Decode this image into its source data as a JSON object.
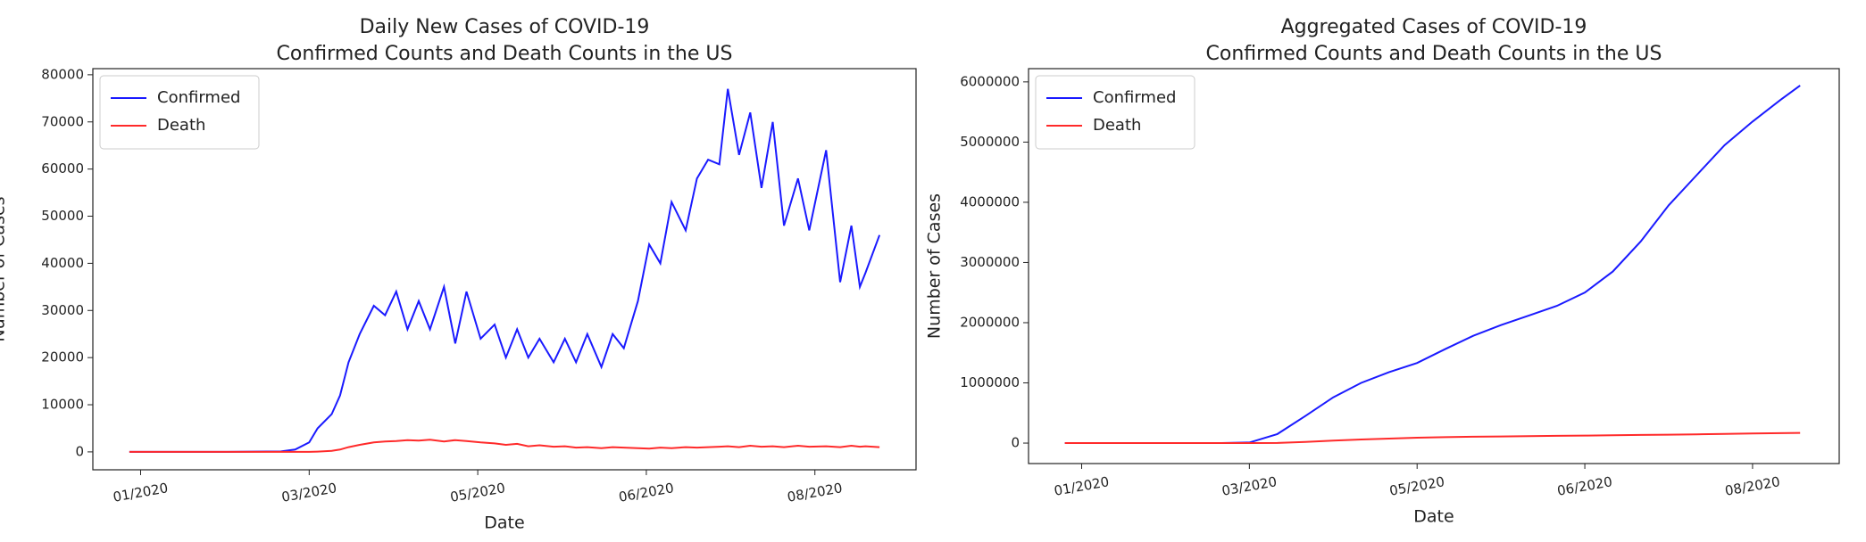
{
  "chart_data": [
    {
      "type": "line",
      "title": "Daily New Cases of COVID-19",
      "subtitle": "Confirmed Counts and Death Counts in the US",
      "x_label": "Date",
      "y_label": "Number of Cases",
      "x": [
        -4,
        10,
        30,
        50,
        55,
        60,
        63,
        68,
        71,
        74,
        78,
        83,
        87,
        91,
        95,
        99,
        103,
        108,
        112,
        116,
        121,
        126,
        130,
        134,
        138,
        142,
        147,
        151,
        155,
        159,
        164,
        168,
        172,
        177,
        181,
        185,
        189,
        194,
        198,
        202,
        206,
        209,
        213,
        217,
        221,
        225,
        229,
        234,
        238,
        244,
        249,
        253,
        256,
        258,
        263
      ],
      "series": [
        {
          "name": "Confirmed",
          "color": "#1a1aff",
          "values": [
            0,
            0,
            0,
            100,
            500,
            2000,
            5000,
            8000,
            12000,
            19000,
            25000,
            31000,
            29000,
            34000,
            26000,
            32000,
            26000,
            35000,
            23000,
            34000,
            24000,
            27000,
            20000,
            26000,
            20000,
            24000,
            19000,
            24000,
            19000,
            25000,
            18000,
            25000,
            22000,
            32000,
            44000,
            40000,
            53000,
            47000,
            58000,
            62000,
            61000,
            77000,
            63000,
            72000,
            56000,
            70000,
            48000,
            58000,
            47000,
            64000,
            36000,
            48000,
            35000,
            38000,
            46000
          ]
        },
        {
          "name": "Death",
          "color": "#ff2a2a",
          "values": [
            0,
            0,
            0,
            0,
            0,
            10,
            50,
            200,
            500,
            1000,
            1500,
            2000,
            2200,
            2300,
            2500,
            2400,
            2600,
            2200,
            2500,
            2300,
            2000,
            1800,
            1500,
            1700,
            1200,
            1400,
            1100,
            1200,
            900,
            1000,
            800,
            1000,
            900,
            800,
            700,
            900,
            800,
            1000,
            900,
            1000,
            1100,
            1200,
            1000,
            1300,
            1100,
            1200,
            1000,
            1300,
            1100,
            1200,
            1000,
            1300,
            1100,
            1200,
            1000
          ]
        }
      ],
      "xlim": [
        -17,
        276
      ],
      "xticks": [
        {
          "value": 0,
          "label": "01/2020"
        },
        {
          "value": 60,
          "label": "03/2020"
        },
        {
          "value": 120,
          "label": "05/2020"
        },
        {
          "value": 180,
          "label": "06/2020"
        },
        {
          "value": 240,
          "label": "08/2020"
        }
      ],
      "ylim": [
        -3800,
        81300
      ],
      "yticks": [
        0,
        10000,
        20000,
        30000,
        40000,
        50000,
        60000,
        70000,
        80000
      ],
      "legend": "upper-left",
      "grid": false
    },
    {
      "type": "line",
      "title": "Aggregated Cases of COVID-19",
      "subtitle": "Confirmed Counts and Death Counts in the US",
      "x_label": "Date",
      "y_label": "Number of Cases",
      "x": [
        -6,
        50,
        60,
        70,
        80,
        90,
        100,
        110,
        120,
        130,
        140,
        150,
        160,
        170,
        180,
        190,
        200,
        210,
        220,
        230,
        240,
        250,
        257
      ],
      "series": [
        {
          "name": "Confirmed",
          "color": "#1a1aff",
          "values": [
            0,
            0,
            10000,
            150000,
            450000,
            760000,
            1000000,
            1180000,
            1330000,
            1560000,
            1780000,
            1960000,
            2120000,
            2280000,
            2500000,
            2850000,
            3350000,
            3950000,
            4450000,
            4950000,
            5340000,
            5700000,
            5940000
          ]
        },
        {
          "name": "Death",
          "color": "#ff2a2a",
          "values": [
            0,
            0,
            100,
            2000,
            20000,
            40000,
            60000,
            75000,
            90000,
            98000,
            105000,
            110000,
            115000,
            120000,
            125000,
            130000,
            135000,
            140000,
            145000,
            152000,
            160000,
            165000,
            170000
          ]
        }
      ],
      "xlim": [
        -19,
        271
      ],
      "xticks": [
        {
          "value": 0,
          "label": "01/2020"
        },
        {
          "value": 60,
          "label": "03/2020"
        },
        {
          "value": 120,
          "label": "05/2020"
        },
        {
          "value": 180,
          "label": "06/2020"
        },
        {
          "value": 240,
          "label": "08/2020"
        }
      ],
      "ylim": [
        -340000,
        6220000
      ],
      "yticks": [
        0,
        1000000,
        2000000,
        3000000,
        4000000,
        5000000,
        6000000
      ],
      "legend": "upper-left",
      "grid": false
    }
  ]
}
